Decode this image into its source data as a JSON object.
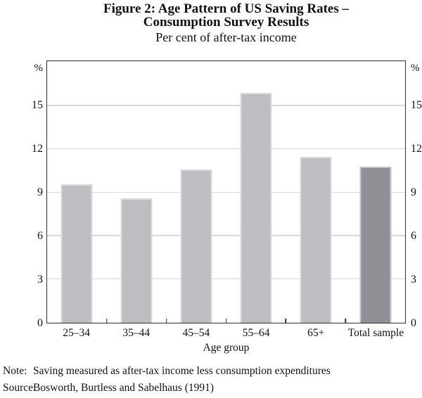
{
  "title": {
    "line1": "Figure 2: Age Pattern of US Saving Rates –",
    "line2": "Consumption Survey Results",
    "subtitle": "Per cent of after-tax income"
  },
  "chart_data": {
    "type": "bar",
    "title": "Figure 2: Age Pattern of US Saving Rates – Consumption Survey Results",
    "subtitle": "Per cent of after-tax income",
    "categories": [
      "25–34",
      "35–44",
      "45–54",
      "55–64",
      "65+",
      "Total sample"
    ],
    "values": [
      9.6,
      8.6,
      10.6,
      15.9,
      11.5,
      10.8
    ],
    "xlabel": "Age group",
    "ylabel": "%",
    "ylabel_right": "%",
    "ylim": [
      0,
      18.1
    ],
    "yticks": [
      0,
      3,
      6,
      9,
      12,
      15
    ],
    "grid": true,
    "legend": "none",
    "highlight_category": "Total sample",
    "bar_color": "#bdbec2",
    "highlight_color": "#8f9095"
  },
  "footer": {
    "note_label": "Note:",
    "note_text": "Saving measured as after-tax income less consumption expenditures",
    "source_label": "Source:",
    "source_text": "Bosworth, Burtless and Sabelhaus (1991)"
  },
  "colors": {
    "bar_light": "#bdbec2",
    "bar_dark": "#8f9095",
    "bar_edge": "#d6d7da",
    "gridline": "#d8d8d8",
    "axis": "#2e2e2e",
    "text": "#111111"
  }
}
